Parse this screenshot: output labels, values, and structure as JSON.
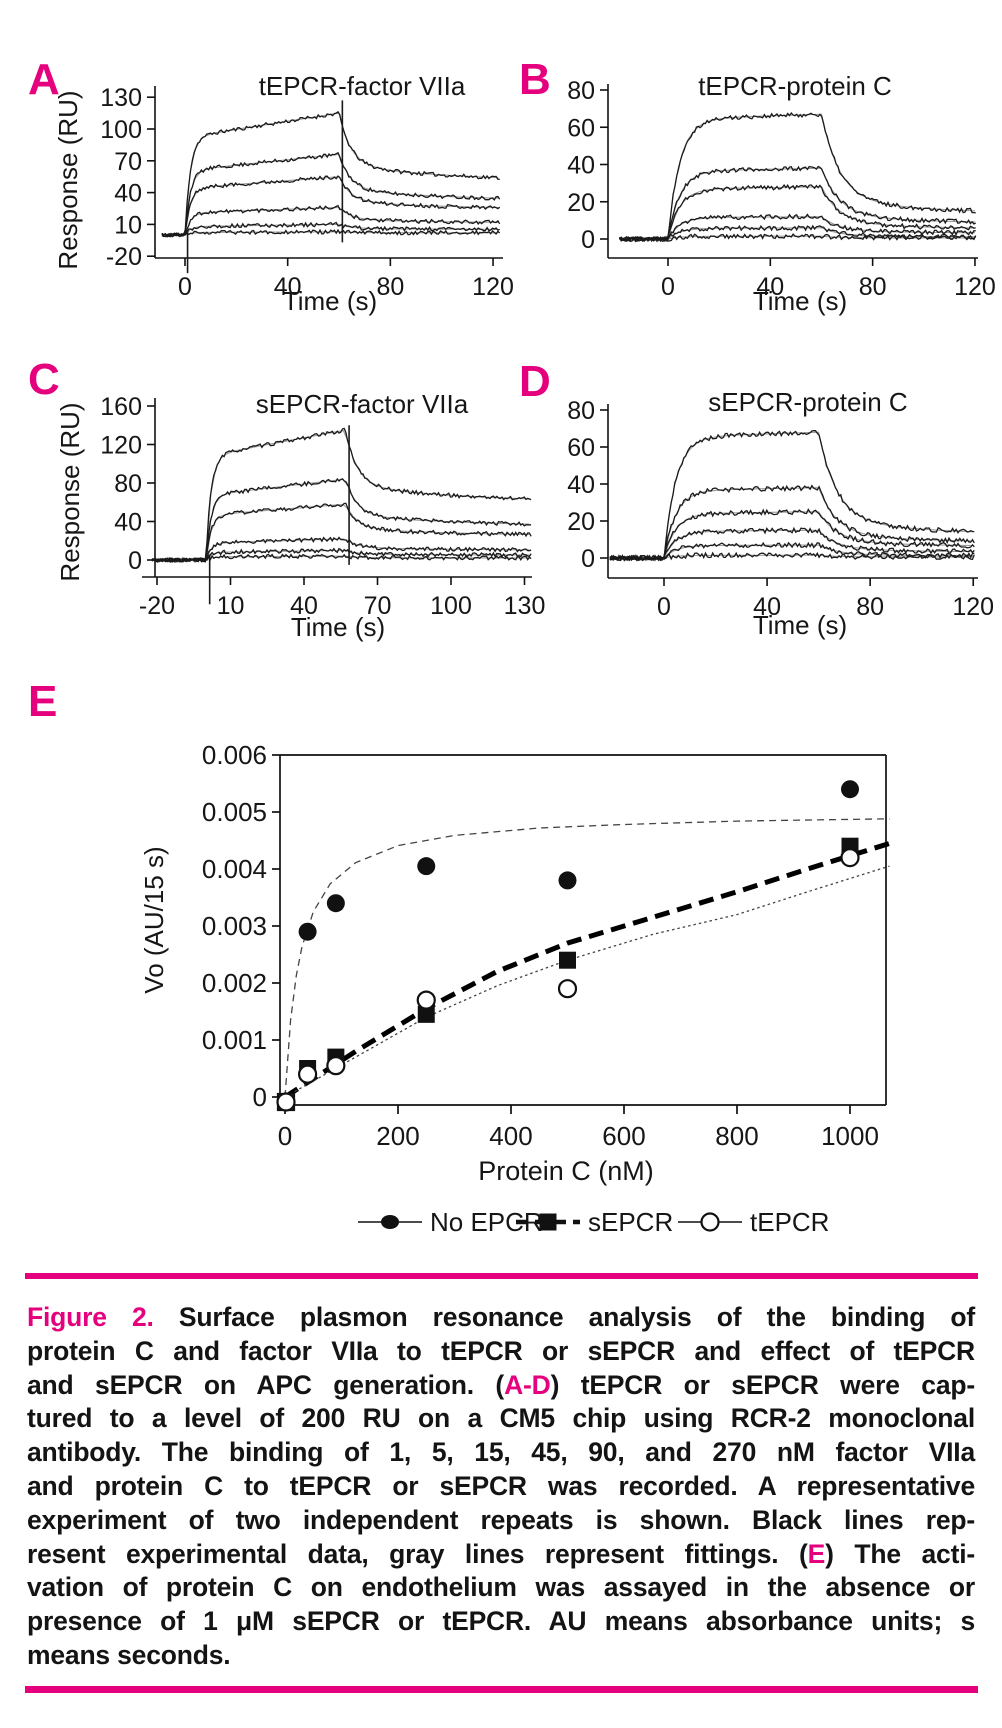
{
  "colors": {
    "accent": "#e5007d",
    "text": "#141414",
    "trace_black": "#1a1a1a",
    "fit_gray": "#9a9a9a"
  },
  "figure": {
    "panel_labels": [
      "A",
      "B",
      "C",
      "D",
      "E"
    ]
  },
  "chart_data": [
    {
      "panel": "A",
      "type": "line",
      "title": "tEPCR-factor VIIa",
      "xlabel": "Time (s)",
      "ylabel": "Response (RU)",
      "xlim": [
        -10,
        123
      ],
      "ylim": [
        -25,
        135
      ],
      "xticks": [
        0,
        40,
        80,
        120
      ],
      "yticks": [
        130,
        100,
        70,
        40,
        10,
        -20
      ],
      "injection_s": [
        0,
        60
      ],
      "concentrations_nM": [
        270,
        90,
        45,
        15,
        5,
        1
      ],
      "plateau_RU": [
        115,
        76,
        55,
        26,
        10,
        3
      ],
      "final_RU": [
        50,
        32,
        24,
        11,
        5,
        2
      ],
      "kinetics": "fviia"
    },
    {
      "panel": "B",
      "type": "line",
      "title": "tEPCR-protein C",
      "xlabel": "Time (s)",
      "ylabel": "",
      "xlim": [
        -20,
        121
      ],
      "ylim": [
        -12,
        85
      ],
      "xticks": [
        0,
        40,
        80,
        120
      ],
      "yticks": [
        80,
        60,
        40,
        20,
        0
      ],
      "injection_s": [
        0,
        60
      ],
      "concentrations_nM": [
        270,
        90,
        45,
        15,
        5,
        1
      ],
      "plateau_RU": [
        67,
        38,
        28,
        12,
        6,
        1.5
      ],
      "final_RU": [
        13,
        8,
        5,
        3,
        1,
        0.5
      ],
      "kinetics": "pc"
    },
    {
      "panel": "C",
      "type": "line",
      "title": "sEPCR-factor VIIa",
      "xlabel": "Time (s)",
      "ylabel": "Response (RU)",
      "xlim": [
        -23,
        133
      ],
      "ylim": [
        -20,
        170
      ],
      "xticks": [
        -20,
        10,
        40,
        70,
        100,
        130
      ],
      "yticks": [
        160,
        120,
        80,
        40,
        0
      ],
      "injection_s": [
        0,
        57
      ],
      "concentrations_nM": [
        270,
        90,
        45,
        15,
        5,
        1
      ],
      "plateau_RU": [
        135,
        84,
        58,
        22,
        10,
        4
      ],
      "final_RU": [
        60,
        35,
        25,
        10,
        5,
        2
      ],
      "kinetics": "fviia"
    },
    {
      "panel": "D",
      "type": "line",
      "title": "sEPCR-protein C",
      "xlabel": "Time (s)",
      "ylabel": "",
      "xlim": [
        -21,
        121
      ],
      "ylim": [
        -12,
        85
      ],
      "xticks": [
        0,
        40,
        80,
        120
      ],
      "yticks": [
        80,
        60,
        40,
        20,
        0
      ],
      "injection_s": [
        0,
        60
      ],
      "concentrations_nM": [
        270,
        90,
        45,
        15,
        5,
        1
      ],
      "plateau_RU": [
        68,
        38,
        25,
        15,
        7,
        1.5
      ],
      "final_RU": [
        12,
        8,
        6,
        3,
        1,
        0.5
      ],
      "kinetics": "pc"
    },
    {
      "panel": "E",
      "type": "scatter",
      "title": "",
      "xlabel": "Protein C (nM)",
      "ylabel": "Vo (AU/15 s)",
      "xlim": [
        0,
        1070
      ],
      "ylim": [
        0,
        0.006
      ],
      "xticks": [
        0,
        200,
        400,
        600,
        800,
        1000
      ],
      "yticks": [
        0.006,
        0.005,
        0.004,
        0.003,
        0.002,
        0.001,
        0
      ],
      "ytick_labels": [
        "0.006",
        "0.005",
        "0.004",
        "0.003",
        "0.002",
        "0.001",
        "0"
      ],
      "series": [
        {
          "name": "No EPCR",
          "marker": "filled-circle",
          "line_style": "thin-dashed",
          "x": [
            40,
            90,
            250,
            500,
            1000
          ],
          "y": [
            0.0029,
            0.0034,
            0.00405,
            0.0038,
            0.0054
          ],
          "fit_anchors": [
            [
              0,
              0
            ],
            [
              10,
              0.00135
            ],
            [
              20,
              0.00213
            ],
            [
              30,
              0.00263
            ],
            [
              50,
              0.00325
            ],
            [
              80,
              0.00374
            ],
            [
              125,
              0.00411
            ],
            [
              200,
              0.00441
            ],
            [
              300,
              0.00459
            ],
            [
              450,
              0.00472
            ],
            [
              600,
              0.00478
            ],
            [
              800,
              0.00484
            ],
            [
              1070,
              0.00488
            ]
          ]
        },
        {
          "name": "sEPCR",
          "marker": "filled-square",
          "line_style": "bold-dashed",
          "x": [
            0,
            40,
            90,
            250,
            500,
            1000
          ],
          "y": [
            0,
            0.0005,
            0.0007,
            0.00145,
            0.0024,
            0.0044
          ],
          "fit_anchors": [
            [
              0,
              0
            ],
            [
              125,
              0.0008
            ],
            [
              250,
              0.00155
            ],
            [
              375,
              0.0022
            ],
            [
              500,
              0.0027
            ],
            [
              650,
              0.00315
            ],
            [
              800,
              0.0036
            ],
            [
              925,
              0.004
            ],
            [
              1070,
              0.00445
            ]
          ]
        },
        {
          "name": "tEPCR",
          "marker": "open-circle",
          "line_style": "thin-dotted",
          "x": [
            0,
            40,
            90,
            250,
            500,
            1000
          ],
          "y": [
            0,
            0.0004,
            0.00055,
            0.0017,
            0.0019,
            0.0042
          ],
          "fit_anchors": [
            [
              0,
              0
            ],
            [
              125,
              0.0007
            ],
            [
              250,
              0.0014
            ],
            [
              375,
              0.00195
            ],
            [
              500,
              0.0024
            ],
            [
              650,
              0.00285
            ],
            [
              800,
              0.0032
            ],
            [
              925,
              0.0036
            ],
            [
              1070,
              0.00405
            ]
          ]
        }
      ],
      "origin_markers": [
        "open-square",
        "open-circle"
      ],
      "legend": [
        "No EPCR",
        "sEPCR",
        "tEPCR"
      ],
      "legend_position": "bottom"
    }
  ],
  "caption": {
    "lines": [
      [
        {
          "t": "Figure 2.",
          "c": "accent"
        },
        {
          "t": " Surface plasmon resonance analysis of the binding of",
          "c": "text"
        }
      ],
      [
        {
          "t": "protein C and factor VIIa to tEPCR or sEPCR and effect of tEPCR",
          "c": "text"
        }
      ],
      [
        {
          "t": "and sEPCR on APC generation. (",
          "c": "text"
        },
        {
          "t": "A-D",
          "c": "accent"
        },
        {
          "t": ") tEPCR or sEPCR were cap-",
          "c": "text"
        }
      ],
      [
        {
          "t": "tured to a level of 200 RU on a CM5 chip using RCR-2 monoclonal",
          "c": "text"
        }
      ],
      [
        {
          "t": "antibody. The binding of 1, 5, 15, 45, 90, and 270 nM factor VIIa",
          "c": "text"
        }
      ],
      [
        {
          "t": "and protein C to tEPCR or sEPCR was recorded. A representative",
          "c": "text"
        }
      ],
      [
        {
          "t": "experiment of two independent repeats is shown. Black lines rep-",
          "c": "text"
        }
      ],
      [
        {
          "t": "resent experimental data, gray lines represent fittings. (",
          "c": "text"
        },
        {
          "t": "E",
          "c": "accent"
        },
        {
          "t": ") The acti-",
          "c": "text"
        }
      ],
      [
        {
          "t": "vation of protein C on endothelium was assayed in the absence or",
          "c": "text"
        }
      ],
      [
        {
          "t": "presence of 1 μM sEPCR or tEPCR. AU means absorbance units; s",
          "c": "text"
        }
      ],
      [
        {
          "t": "means seconds.",
          "c": "text"
        }
      ]
    ]
  }
}
